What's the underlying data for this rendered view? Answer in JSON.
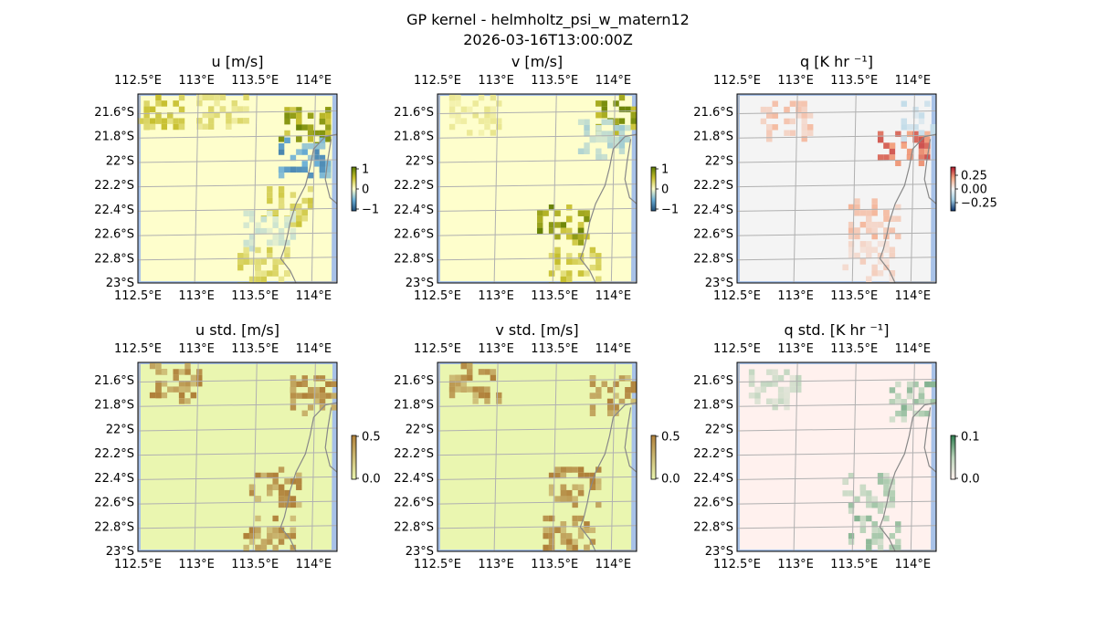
{
  "figure": {
    "title": "GP kernel - helmholtz_psi_w_matern12",
    "timestamp": "2026-03-16T13:00:00Z"
  },
  "colors": {
    "ocean": "#a8c2e8",
    "land_yellow": "#fefecc",
    "land_grey": "#f4f4f4",
    "land_green": "#eaf6b0",
    "land_pink": "#fff1ee",
    "coast": "#888888",
    "grid": "#b0b0b0"
  },
  "chart_data": [
    {
      "type": "heatmap",
      "title": "u [m/s]",
      "xticks": [
        "112.5°E",
        "113°E",
        "113.5°E",
        "114°E"
      ],
      "yticks": [
        "21.6°S",
        "21.8°S",
        "22°S",
        "22.2°S",
        "22.4°S",
        "22.6°S",
        "22.8°S",
        "23°S"
      ],
      "xlim": [
        112.5,
        114.2
      ],
      "ylim": [
        -23.0,
        -21.45
      ],
      "colorbar": {
        "ticks": [
          "1",
          "0",
          "−1"
        ],
        "range": [
          -1,
          1
        ],
        "colors": [
          "#1f4e79",
          "#6aaed6",
          "#fefecc",
          "#c8c030",
          "#5a7a00"
        ]
      },
      "patches": [
        {
          "lon": 112.65,
          "lat": -21.6,
          "value": 0.5
        },
        {
          "lon": 113.2,
          "lat": -21.55,
          "value": 0.3
        },
        {
          "lon": 113.9,
          "lat": -21.7,
          "value": 0.9
        },
        {
          "lon": 113.9,
          "lat": -21.95,
          "value": -0.7
        },
        {
          "lon": 113.75,
          "lat": -22.35,
          "value": 0.5
        },
        {
          "lon": 113.6,
          "lat": -22.55,
          "value": -0.2
        },
        {
          "lon": 113.55,
          "lat": -22.85,
          "value": 0.4
        }
      ]
    },
    {
      "type": "heatmap",
      "title": "v [m/s]",
      "xticks": [
        "112.5°E",
        "113°E",
        "113.5°E",
        "114°E"
      ],
      "yticks": [
        "21.6°S",
        "21.8°S",
        "22°S",
        "22.2°S",
        "22.4°S",
        "22.6°S",
        "22.8°S",
        "23°S"
      ],
      "xlim": [
        112.5,
        114.2
      ],
      "ylim": [
        -23.0,
        -21.45
      ],
      "colorbar": {
        "ticks": [
          "1",
          "0",
          "−1"
        ],
        "range": [
          -1,
          1
        ],
        "colors": [
          "#1f4e79",
          "#6aaed6",
          "#fefecc",
          "#c8c030",
          "#5a7a00"
        ]
      },
      "patches": [
        {
          "lon": 112.8,
          "lat": -21.6,
          "value": 0.2
        },
        {
          "lon": 114.05,
          "lat": -21.6,
          "value": 0.9
        },
        {
          "lon": 113.9,
          "lat": -21.8,
          "value": -0.3
        },
        {
          "lon": 113.55,
          "lat": -22.5,
          "value": 0.9
        },
        {
          "lon": 113.65,
          "lat": -22.85,
          "value": 0.5
        }
      ]
    },
    {
      "type": "heatmap",
      "title": "q [K hr ⁻¹]",
      "xticks": [
        "112.5°E",
        "113°E",
        "113.5°E",
        "114°E"
      ],
      "yticks": [
        "21.6°S",
        "21.8°S",
        "22°S",
        "22.2°S",
        "22.4°S",
        "22.6°S",
        "22.8°S",
        "23°S"
      ],
      "xlim": [
        112.5,
        114.2
      ],
      "ylim": [
        -23.0,
        -21.45
      ],
      "colorbar": {
        "ticks": [
          "0.25",
          "0.00",
          "−0.25"
        ],
        "range": [
          -0.35,
          0.35
        ],
        "colors": [
          "#08306b",
          "#9ecae1",
          "#f4f4f4",
          "#f4a582",
          "#b2182b"
        ]
      },
      "patches": [
        {
          "lon": 112.9,
          "lat": -21.65,
          "value": 0.12
        },
        {
          "lon": 113.9,
          "lat": -21.85,
          "value": 0.28
        },
        {
          "lon": 114.1,
          "lat": -21.65,
          "value": -0.1
        },
        {
          "lon": 113.65,
          "lat": -22.45,
          "value": 0.14
        },
        {
          "lon": 113.6,
          "lat": -22.8,
          "value": 0.08
        }
      ]
    },
    {
      "type": "heatmap",
      "title": "u std. [m/s]",
      "xticks": [
        "112.5°E",
        "113°E",
        "113.5°E",
        "114°E"
      ],
      "yticks": [
        "21.6°S",
        "21.8°S",
        "22°S",
        "22.2°S",
        "22.4°S",
        "22.6°S",
        "22.8°S",
        "23°S"
      ],
      "xlim": [
        112.5,
        114.2
      ],
      "ylim": [
        -23.0,
        -21.45
      ],
      "colorbar": {
        "ticks": [
          "0.5",
          "0.0"
        ],
        "range": [
          0,
          0.5
        ],
        "colors": [
          "#eaf6b0",
          "#b0813a"
        ]
      },
      "patches": [
        {
          "lon": 112.8,
          "lat": -21.6,
          "value": 0.5
        },
        {
          "lon": 114.0,
          "lat": -21.7,
          "value": 0.5
        },
        {
          "lon": 113.65,
          "lat": -22.45,
          "value": 0.5
        },
        {
          "lon": 113.6,
          "lat": -22.85,
          "value": 0.5
        }
      ]
    },
    {
      "type": "heatmap",
      "title": "v std. [m/s]",
      "xticks": [
        "112.5°E",
        "113°E",
        "113.5°E",
        "114°E"
      ],
      "yticks": [
        "21.6°S",
        "21.8°S",
        "22°S",
        "22.2°S",
        "22.4°S",
        "22.6°S",
        "22.8°S",
        "23°S"
      ],
      "xlim": [
        112.5,
        114.2
      ],
      "ylim": [
        -23.0,
        -21.45
      ],
      "colorbar": {
        "ticks": [
          "0.5",
          "0.0"
        ],
        "range": [
          0,
          0.5
        ],
        "colors": [
          "#eaf6b0",
          "#b0813a"
        ]
      },
      "patches": [
        {
          "lon": 112.8,
          "lat": -21.6,
          "value": 0.5
        },
        {
          "lon": 114.0,
          "lat": -21.7,
          "value": 0.5
        },
        {
          "lon": 113.65,
          "lat": -22.45,
          "value": 0.5
        },
        {
          "lon": 113.6,
          "lat": -22.85,
          "value": 0.5
        }
      ]
    },
    {
      "type": "heatmap",
      "title": "q std. [K hr ⁻¹]",
      "xticks": [
        "112.5°E",
        "113°E",
        "113.5°E",
        "114°E"
      ],
      "yticks": [
        "21.6°S",
        "21.8°S",
        "22°S",
        "22.2°S",
        "22.4°S",
        "22.6°S",
        "22.8°S",
        "23°S"
      ],
      "xlim": [
        112.5,
        114.2
      ],
      "ylim": [
        -23.0,
        -21.45
      ],
      "colorbar": {
        "ticks": [
          "0.1",
          "0.0"
        ],
        "range": [
          0,
          0.12
        ],
        "colors": [
          "#fff1ee",
          "#b9d3b9",
          "#2e7d4f"
        ]
      },
      "patches": [
        {
          "lon": 112.8,
          "lat": -21.65,
          "value": 0.05
        },
        {
          "lon": 114.0,
          "lat": -21.75,
          "value": 0.08
        },
        {
          "lon": 113.6,
          "lat": -22.5,
          "value": 0.07
        },
        {
          "lon": 113.65,
          "lat": -22.85,
          "value": 0.08
        }
      ]
    }
  ]
}
